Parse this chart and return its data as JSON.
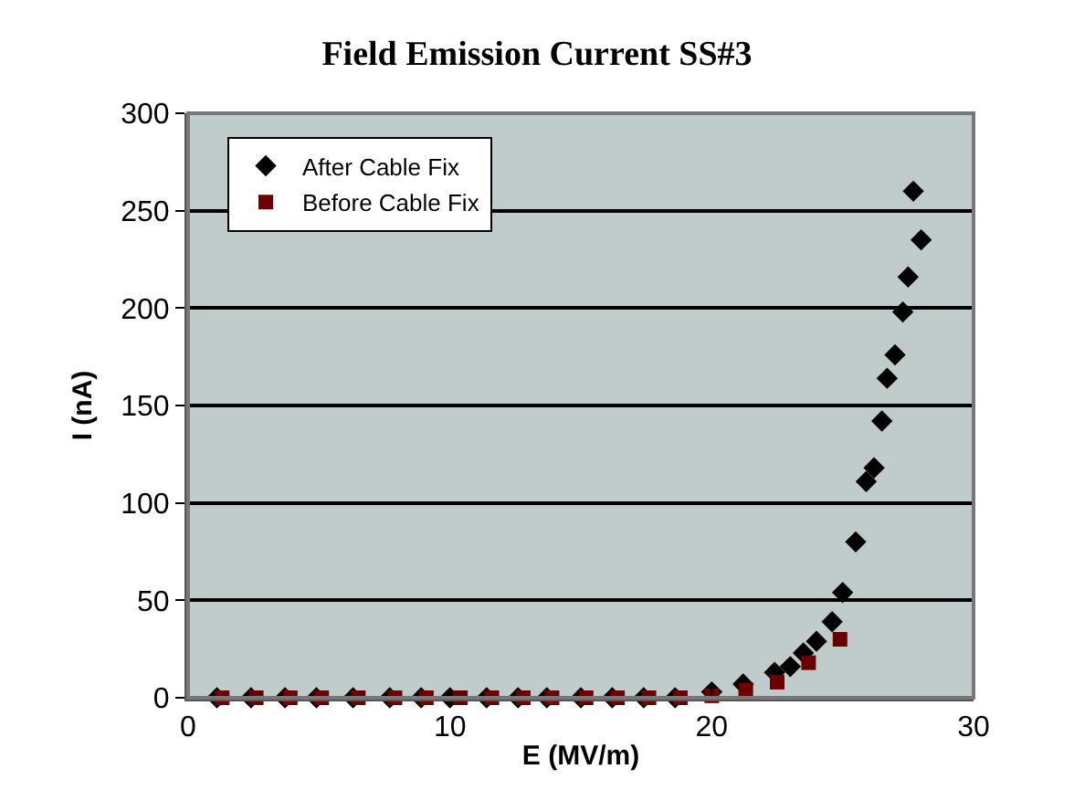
{
  "chart_data": {
    "type": "scatter",
    "title": "Field Emission Current SS#3",
    "xlabel": "E (MV/m)",
    "ylabel": "I (nA)",
    "xlim": [
      0,
      30
    ],
    "xticks": [
      0,
      10,
      20,
      30
    ],
    "ylim": [
      0,
      300
    ],
    "yticks": [
      0,
      50,
      100,
      150,
      200,
      250,
      300
    ],
    "grid": "y",
    "legend": "top left",
    "marker": "diamond",
    "series": [
      {
        "name": "After Cable Fix",
        "color": "#000000",
        "x": [
          1.1,
          2.4,
          3.7,
          4.9,
          6.3,
          7.7,
          8.9,
          10.0,
          11.4,
          12.6,
          13.7,
          15.0,
          16.2,
          17.4,
          18.6,
          20.0,
          21.2,
          22.4,
          23.0,
          23.5,
          24.0,
          24.6,
          25.0,
          25.5,
          25.9,
          26.2,
          26.5,
          26.7,
          27.0,
          27.3,
          27.5,
          27.7,
          28.0
        ],
        "values": [
          0,
          0,
          0,
          0,
          0,
          0,
          0,
          0,
          0,
          0,
          0,
          0,
          0,
          0,
          0,
          3,
          7,
          13,
          16,
          23,
          29,
          39,
          54,
          80,
          111,
          118,
          142,
          164,
          176,
          198,
          216,
          260,
          235
        ]
      },
      {
        "name": "Before Cable Fix",
        "color": "#6b0000",
        "marker": "square",
        "x": [
          1.3,
          2.6,
          3.9,
          5.1,
          6.5,
          7.9,
          9.1,
          10.4,
          11.6,
          12.8,
          13.9,
          15.2,
          16.4,
          17.6,
          18.8,
          20.0,
          21.3,
          22.5,
          23.7,
          24.9
        ],
        "values": [
          0,
          0,
          0,
          0,
          0,
          0,
          0,
          0,
          0,
          0,
          0,
          0,
          0,
          0,
          0,
          1,
          4,
          8,
          18,
          30
        ]
      }
    ]
  }
}
